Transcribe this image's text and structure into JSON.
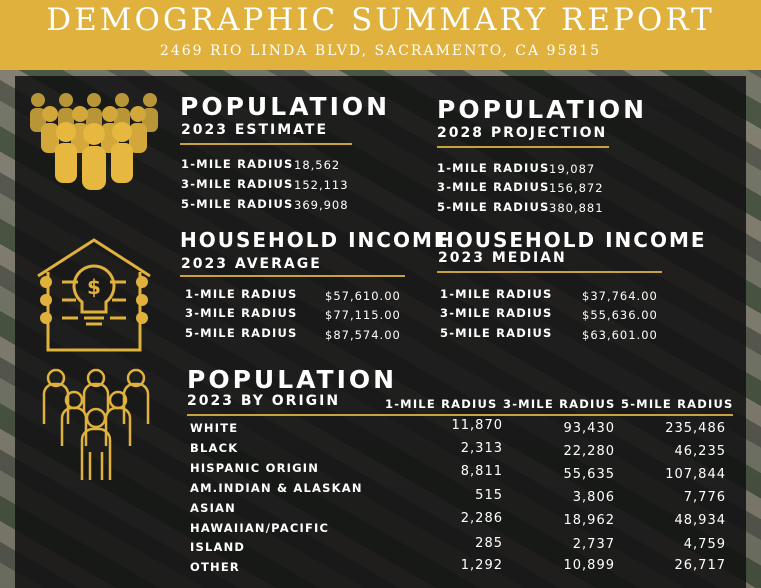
{
  "header": {
    "title": "DEMOGRAPHIC SUMMARY REPORT",
    "address": "2469 RIO LINDA BLVD, SACRAMENTO, CA 95815"
  },
  "population_2023": {
    "title": "POPULATION",
    "subtitle": "2023 ESTIMATE",
    "rows": [
      {
        "label": "1-MILE RADIUS",
        "value": "18,562"
      },
      {
        "label": "3-MILE RADIUS",
        "value": "152,113"
      },
      {
        "label": "5-MILE RADIUS",
        "value": "369,908"
      }
    ]
  },
  "population_2028": {
    "title": "POPULATION",
    "subtitle": "2028 PROJECTION",
    "rows": [
      {
        "label": "1-MILE RADIUS",
        "value": "19,087"
      },
      {
        "label": "3-MILE RADIUS",
        "value": "156,872"
      },
      {
        "label": "5-MILE RADIUS",
        "value": "380,881"
      }
    ]
  },
  "income_average": {
    "title": "HOUSEHOLD INCOME",
    "subtitle": "2023 AVERAGE",
    "rows": [
      {
        "label": "1-MILE RADIUS",
        "value": "$57,610.00"
      },
      {
        "label": "3-MILE RADIUS",
        "value": "$77,115.00"
      },
      {
        "label": "5-MILE RADIUS",
        "value": "$87,574.00"
      }
    ]
  },
  "income_median": {
    "title": "HOUSEHOLD INCOME",
    "subtitle": "2023 MEDIAN",
    "rows": [
      {
        "label": "1-MILE RADIUS",
        "value": "$37,764.00"
      },
      {
        "label": "3-MILE RADIUS",
        "value": "$55,636.00"
      },
      {
        "label": "5-MILE RADIUS",
        "value": "$63,601.00"
      }
    ]
  },
  "origin": {
    "title": "POPULATION",
    "subtitle": "2023 BY ORIGIN",
    "columns": [
      "1-MILE RADIUS",
      "3-MILE RADIUS",
      "5-MILE RADIUS"
    ],
    "rows": [
      {
        "label": "WHITE",
        "values": [
          "11,870",
          "93,430",
          "235,486"
        ]
      },
      {
        "label": "BLACK",
        "values": [
          "2,313",
          "22,280",
          "46,235"
        ]
      },
      {
        "label": "HISPANIC ORIGIN",
        "values": [
          "8,811",
          "55,635",
          "107,844"
        ]
      },
      {
        "label": "AM.INDIAN & ALASKAN",
        "values": [
          "515",
          "3,806",
          "7,776"
        ]
      },
      {
        "label": "ASIAN",
        "values": [
          "2,286",
          "18,962",
          "48,934"
        ]
      },
      {
        "label": "HAWAIIAN/PACIFIC",
        "values": [
          "285",
          "2,737",
          "4,759"
        ]
      },
      {
        "label": "ISLAND",
        "values": [
          "1,292",
          "10,899",
          "26,717"
        ]
      },
      {
        "label": "OTHER",
        "values": [
          "",
          "",
          ""
        ]
      }
    ]
  },
  "colors": {
    "accent": "#e0b13c",
    "panel": "#101012",
    "text": "#ffffff"
  },
  "icons": [
    "people-group-icon",
    "house-lightbulb-icon",
    "people-outline-icon"
  ]
}
